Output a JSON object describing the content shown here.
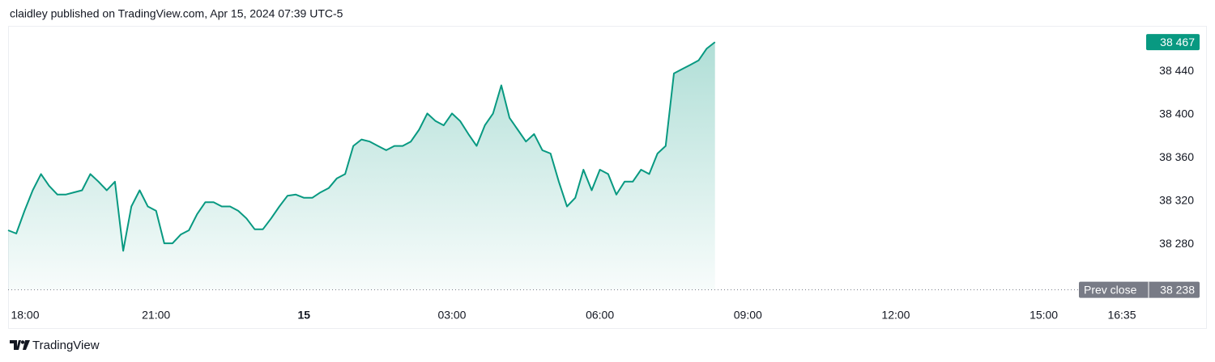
{
  "chart_data": {
    "type": "area",
    "title": "claidley published on TradingView.com, Apr 15, 2024 07:39 UTC-5",
    "footer": "TradingView",
    "color": "#089981",
    "x": [
      "18:00",
      "18:10",
      "18:20",
      "18:30",
      "18:40",
      "18:50",
      "19:00",
      "19:10",
      "19:20",
      "19:30",
      "19:40",
      "19:50",
      "20:00",
      "20:10",
      "20:20",
      "20:30",
      "20:40",
      "20:50",
      "21:00",
      "21:10",
      "21:20",
      "21:30",
      "21:40",
      "21:50",
      "22:00",
      "22:10",
      "22:20",
      "22:30",
      "22:40",
      "22:50",
      "23:00",
      "23:10",
      "23:20",
      "23:30",
      "23:40",
      "23:50",
      "00:00",
      "00:10",
      "00:20",
      "00:30",
      "00:40",
      "00:50",
      "01:00",
      "01:10",
      "01:20",
      "01:30",
      "01:40",
      "01:50",
      "02:00",
      "02:10",
      "02:20",
      "02:30",
      "02:40",
      "02:50",
      "03:00",
      "03:10",
      "03:20",
      "03:30",
      "03:40",
      "03:50",
      "04:00",
      "04:10",
      "04:20",
      "04:30",
      "04:40",
      "04:50",
      "05:00",
      "05:10",
      "05:20",
      "05:30",
      "05:40",
      "05:50",
      "06:00",
      "06:10",
      "06:20",
      "06:30",
      "06:40",
      "06:50",
      "07:00",
      "07:10",
      "07:20",
      "07:30",
      "07:40",
      "07:50",
      "08:00",
      "08:10",
      "08:20"
    ],
    "values": [
      38293,
      38290,
      38311,
      38330,
      38345,
      38334,
      38326,
      38326,
      38328,
      38330,
      38345,
      38338,
      38330,
      38338,
      38274,
      38315,
      38330,
      38315,
      38311,
      38281,
      38281,
      38289,
      38293,
      38308,
      38319,
      38319,
      38315,
      38315,
      38311,
      38304,
      38294,
      38294,
      38304,
      38315,
      38325,
      38326,
      38323,
      38323,
      38328,
      38332,
      38341,
      38345,
      38371,
      38377,
      38375,
      38371,
      38367,
      38371,
      38371,
      38375,
      38386,
      38401,
      38394,
      38390,
      38401,
      38394,
      38382,
      38371,
      38390,
      38401,
      38427,
      38397,
      38386,
      38375,
      38382,
      38367,
      38364,
      38338,
      38315,
      38323,
      38349,
      38330,
      38349,
      38345,
      38326,
      38338,
      38338,
      38349,
      38345,
      38364,
      38371,
      38438,
      38442,
      38446,
      38450,
      38461,
      38467
    ],
    "last_label": "38 467",
    "prev_close": {
      "name": "Prev close",
      "value": 38238,
      "label": "38 238"
    },
    "xlim": [
      "18:00",
      "16:35"
    ],
    "xticks": [
      "18:00",
      "21:00",
      {
        "value": "00:00",
        "label": "15"
      },
      "03:00",
      "06:00",
      "09:00",
      "12:00",
      "15:00",
      "16:35"
    ],
    "ylim": [
      38228,
      38482
    ],
    "yticks": [
      {
        "value": 38280,
        "label": "38 280"
      },
      {
        "value": 38320,
        "label": "38 320"
      },
      {
        "value": 38360,
        "label": "38 360"
      },
      {
        "value": 38400,
        "label": "38 400"
      },
      {
        "value": 38440,
        "label": "38 440"
      }
    ]
  }
}
